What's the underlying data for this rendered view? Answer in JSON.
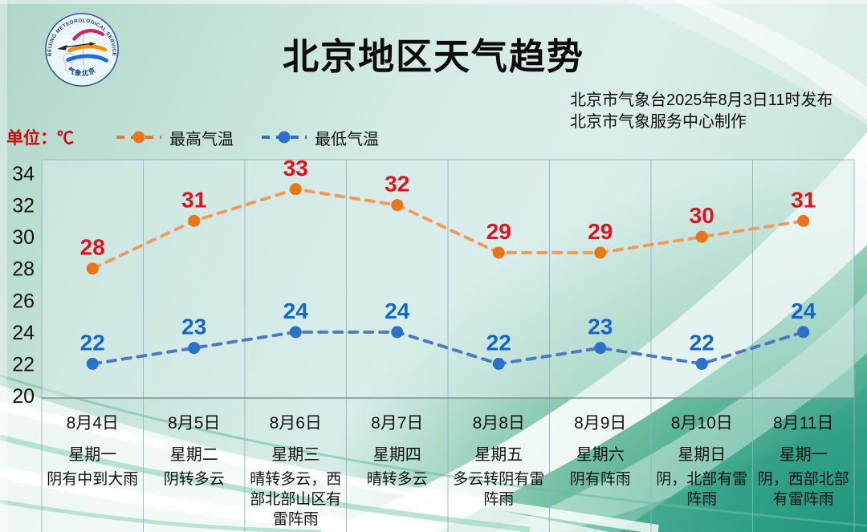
{
  "header": {
    "title": "北京地区天气趋势",
    "publish_line1": "北京市气象台2025年8月3日11时发布",
    "publish_line2": "北京市气象服务中心制作"
  },
  "logo": {
    "text_top": "BEIJING METEOROLOGICAL SERVICE",
    "text_bottom": "气象北京"
  },
  "unit_label": "单位：℃",
  "legend": [
    {
      "label": "最高气温",
      "color": "#E8761A"
    },
    {
      "label": "最低气温",
      "color": "#2C70C8"
    }
  ],
  "chart_data": {
    "type": "line",
    "title": "北京地区天气趋势",
    "categories": [
      "8月4日",
      "8月5日",
      "8月6日",
      "8月7日",
      "8月8日",
      "8月9日",
      "8月10日",
      "8月11日"
    ],
    "weekdays": [
      "星期一",
      "星期二",
      "星期三",
      "星期四",
      "星期五",
      "星期六",
      "星期日",
      "星期一"
    ],
    "weather": [
      "阴有中到大雨",
      "阴转多云",
      "晴转多云，西部北部山区有雷阵雨",
      "晴转多云",
      "多云转阴有雷阵雨",
      "阴有阵雨",
      "阴，北部有雷阵雨",
      "阴，西部北部有雷阵雨"
    ],
    "series": [
      {
        "name": "最高气温",
        "values": [
          28,
          31,
          33,
          32,
          29,
          29,
          30,
          31
        ],
        "color": "#E8761A",
        "line_color": "#F19A5B",
        "label_color": "#DF1220"
      },
      {
        "name": "最低气温",
        "values": [
          22,
          23,
          24,
          24,
          22,
          23,
          22,
          24
        ],
        "color": "#2C70C8",
        "line_color": "#4E79C5",
        "label_color": "#1467C8"
      }
    ],
    "ylim": [
      20,
      34
    ],
    "yticks": [
      20,
      22,
      24,
      26,
      28,
      30,
      32,
      34
    ],
    "grid": "vertical",
    "line_style": "dashed",
    "legend_position": "top-left"
  }
}
